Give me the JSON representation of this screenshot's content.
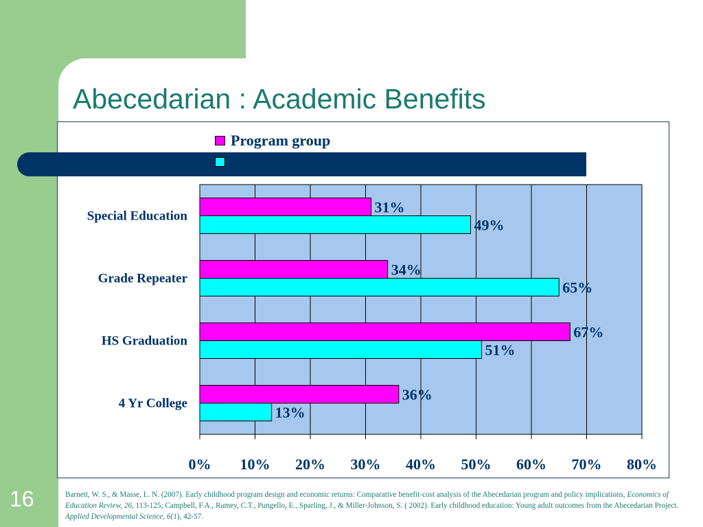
{
  "slide": {
    "title": "Abecedarian : Academic Benefits",
    "page_number": "16",
    "citation": {
      "part1": "Barnett, W. S., & Masse, L. N. (2007).  Early childhood program design and economic returns: Comparative benefit-cost analysis of the Abecedarian program and policy implications, ",
      "journal1": "Economics of Education Review, 26,",
      "part2": " 113-125; Campbell, F.A., Ramey, C.T., Pungello, E., Sparling, J., & Miller-Johnson, S. ( 2002).  Early childhood education: Young adult outcomes from the Abecedarian Project. ",
      "journal2": "Applied Developmental Science",
      "part3": ", ",
      "volume2": "6",
      "part4": "(1), 42-57."
    }
  },
  "colors": {
    "program": "#ff00ff",
    "comparison": "#00ffff",
    "plot_bg": "#a6c8ee",
    "text": "#003366",
    "title": "#1a7a6e",
    "background": "#99cc8f"
  },
  "chart_data": {
    "type": "bar",
    "orientation": "horizontal",
    "categories": [
      "Special Education",
      "Grade Repeater",
      "HS Graduation",
      "4 Yr College"
    ],
    "series": [
      {
        "name": "Program group",
        "values": [
          31,
          34,
          67,
          36
        ]
      },
      {
        "values": [
          49,
          65,
          51,
          13
        ]
      }
    ],
    "value_labels": [
      [
        "31%",
        "34%",
        "67%",
        "36%"
      ],
      [
        "49%",
        "65%",
        "51%",
        "13%"
      ]
    ],
    "xlim": [
      0,
      80
    ],
    "xticks": [
      0,
      10,
      20,
      30,
      40,
      50,
      60,
      70,
      80
    ],
    "xtick_labels": [
      "0%",
      "10%",
      "20%",
      "30%",
      "40%",
      "50%",
      "60%",
      "70%",
      "80%"
    ],
    "grid": true,
    "legend_position": "top"
  }
}
